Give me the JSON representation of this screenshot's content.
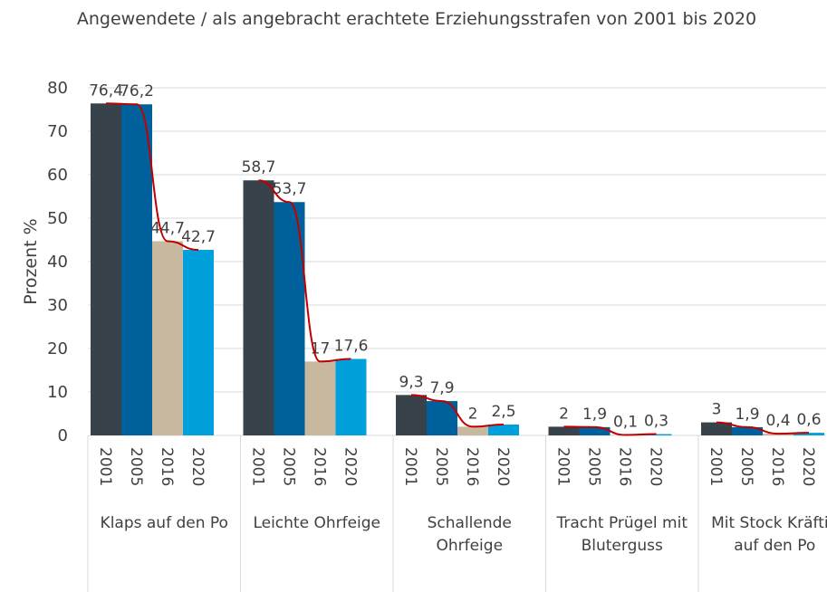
{
  "chart_data": {
    "type": "bar",
    "title": "Angewendete / als angebracht erachtete Erziehungsstrafen von 2001 bis 2020",
    "ylabel": "Prozent %",
    "categories": [
      "Klaps auf den Po",
      "Leichte Ohrfeige",
      "Schallende Ohrfeige",
      "Tracht Prügel mit Bluterguss",
      "Mit Stock Kräftig auf den Po"
    ],
    "series": [
      {
        "name": "2001",
        "color": "#37424a",
        "values": [
          76.4,
          58.7,
          9.3,
          2,
          3
        ],
        "value_labels": [
          "76,4",
          "58,7",
          "9,3",
          "2",
          "3"
        ]
      },
      {
        "name": "2005",
        "color": "#00609c",
        "values": [
          76.2,
          53.7,
          7.9,
          1.9,
          1.9
        ],
        "value_labels": [
          "76,2",
          "53,7",
          "7,9",
          "1,9",
          "1,9"
        ]
      },
      {
        "name": "2016",
        "color": "#c8b89f",
        "values": [
          44.7,
          17,
          2,
          0.1,
          0.4
        ],
        "value_labels": [
          "44,7",
          "17",
          "2",
          "0,1",
          "0,4"
        ]
      },
      {
        "name": "2020",
        "color": "#00a0dc",
        "values": [
          42.7,
          17.6,
          2.5,
          0.3,
          0.6
        ],
        "value_labels": [
          "42,7",
          "17,6",
          "2,5",
          "0,3",
          "0,6"
        ]
      }
    ],
    "trend_color": "#c00000",
    "ylim": [
      0,
      80
    ],
    "yticks": [
      0,
      10,
      20,
      30,
      40,
      50,
      60,
      70,
      80
    ],
    "grid": true
  }
}
